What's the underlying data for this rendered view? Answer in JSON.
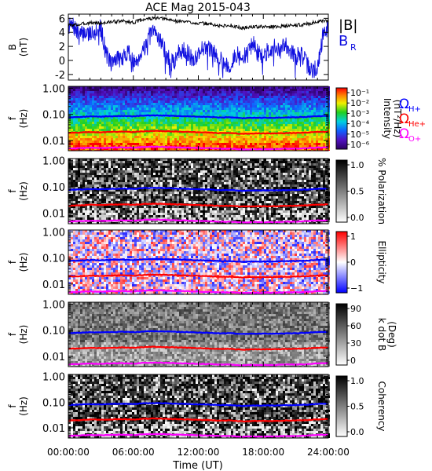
{
  "title": "ACE Mag 2015-043",
  "xlabel": "Time (UT)",
  "xticks": [
    "00:00:00",
    "06:00:00",
    "12:00:00",
    "18:00:00",
    "24:00:00"
  ],
  "colors": {
    "babs": "#000000",
    "br": "#1010e0",
    "h_plus": "#0000ff",
    "he_plus": "#ff0000",
    "o_plus": "#ff00ff"
  },
  "chart_data": [
    {
      "type": "line",
      "panel": "field",
      "xlabel": "",
      "ylabel": "B",
      "yunit": "(nT)",
      "xlim": [
        0,
        24
      ],
      "ylim": [
        -2.8,
        6.6
      ],
      "yticks": [
        "-2",
        "0",
        "2",
        "4",
        "6"
      ],
      "legend": [
        "|B|",
        "B",
        "R"
      ],
      "series": [
        {
          "name": "|B|",
          "x": [
            0,
            1,
            2,
            3,
            4,
            5,
            6,
            7,
            8,
            9,
            10,
            11,
            12,
            13,
            14,
            15,
            16,
            17,
            18,
            19,
            20,
            21,
            22,
            23,
            24
          ],
          "values": [
            5.0,
            5.1,
            5.4,
            5.3,
            5.5,
            5.6,
            5.4,
            5.9,
            6.0,
            5.9,
            5.6,
            5.5,
            5.3,
            5.2,
            4.9,
            5.0,
            4.6,
            4.8,
            4.8,
            4.8,
            4.9,
            5.0,
            5.2,
            5.5,
            5.6
          ]
        },
        {
          "name": "B_R",
          "x": [
            0,
            0.5,
            1,
            1.5,
            2,
            2.5,
            3,
            3.5,
            4,
            4.5,
            5,
            5.5,
            6,
            6.5,
            7,
            7.5,
            8,
            8.5,
            9,
            9.5,
            10,
            10.5,
            11,
            11.5,
            12,
            12.5,
            13,
            13.5,
            14,
            14.5,
            15,
            15.5,
            16,
            16.5,
            17,
            17.5,
            18,
            18.5,
            19,
            19.5,
            20,
            20.5,
            21,
            21.5,
            22,
            22.5,
            23,
            23.5,
            24
          ],
          "values": [
            5.0,
            4.8,
            3.5,
            4.0,
            3.8,
            4.5,
            4.7,
            1.0,
            -0.5,
            0.5,
            0.0,
            1.5,
            -0.5,
            0.5,
            2.0,
            3.5,
            4.0,
            3.0,
            1.0,
            -0.5,
            0.5,
            2.0,
            1.0,
            0.0,
            1.0,
            2.0,
            1.5,
            1.0,
            0.5,
            -0.5,
            -1.0,
            1.0,
            0.0,
            1.0,
            2.5,
            1.0,
            0.5,
            1.5,
            2.0,
            1.0,
            2.5,
            1.5,
            0.5,
            1.0,
            -0.5,
            -1.5,
            -1.0,
            3.5,
            5.0
          ]
        }
      ]
    },
    {
      "type": "heatmap",
      "panel": "intensity",
      "ylabel": "f",
      "yunit": "(Hz)",
      "yscale": "log",
      "ylim": [
        0.004,
        1.2
      ],
      "yticks": [
        "1.00",
        "0.10",
        "0.01"
      ],
      "colorbar": {
        "label": "Intensity",
        "unit": "(nT²/Hz)",
        "ticks": [
          "10⁻¹",
          "10⁻²",
          "10⁻³",
          "10⁻⁴",
          "10⁻⁵",
          "10⁻⁶"
        ],
        "colormap": "rainbow"
      },
      "legend": [
        {
          "symbol": "Ω",
          "sub": "H+",
          "color": "#0000ff"
        },
        {
          "symbol": "Ω",
          "sub": "He+",
          "color": "#ff0000"
        },
        {
          "symbol": "Ω",
          "sub": "O+",
          "color": "#ff00ff"
        }
      ]
    },
    {
      "type": "heatmap",
      "panel": "polarization",
      "ylabel": "f",
      "yunit": "(Hz)",
      "yscale": "log",
      "ylim": [
        0.004,
        1.2
      ],
      "yticks": [
        "1.00",
        "0.10",
        "0.01"
      ],
      "colorbar": {
        "label": "% Polarization",
        "unit": "",
        "ticks": [
          "1.0",
          "0.5",
          "0.0"
        ],
        "colormap": "gray"
      }
    },
    {
      "type": "heatmap",
      "panel": "ellipticity",
      "ylabel": "f",
      "yunit": "(Hz)",
      "yscale": "log",
      "ylim": [
        0.004,
        1.2
      ],
      "yticks": [
        "1.00",
        "0.10",
        "0.01"
      ],
      "colorbar": {
        "label": "Ellipticity",
        "unit": "",
        "ticks": [
          "1",
          "0",
          "−1"
        ],
        "colormap": "bwr"
      }
    },
    {
      "type": "heatmap",
      "panel": "kdotb",
      "ylabel": "f",
      "yunit": "(Hz)",
      "yscale": "log",
      "ylim": [
        0.004,
        1.2
      ],
      "yticks": [
        "1.00",
        "0.10",
        "0.01"
      ],
      "colorbar": {
        "label": "k dot B",
        "unit": "(Deg)",
        "ticks": [
          "90",
          "60",
          "30",
          "0"
        ],
        "colormap": "gray"
      }
    },
    {
      "type": "heatmap",
      "panel": "coherency",
      "ylabel": "f",
      "yunit": "(Hz)",
      "yscale": "log",
      "ylim": [
        0.004,
        1.2
      ],
      "yticks": [
        "1.00",
        "0.10",
        "0.01"
      ],
      "colorbar": {
        "label": "Coherency",
        "unit": "",
        "ticks": [
          "1.0",
          "0.5",
          "0.0"
        ],
        "colormap": "gray"
      }
    }
  ],
  "gyrofrequencies": {
    "x": [
      0,
      1,
      2,
      3,
      4,
      5,
      6,
      7,
      8,
      9,
      10,
      11,
      12,
      13,
      14,
      15,
      16,
      17,
      18,
      19,
      20,
      21,
      22,
      23,
      24
    ],
    "h_plus_hz": [
      0.078,
      0.08,
      0.084,
      0.082,
      0.085,
      0.087,
      0.084,
      0.09,
      0.092,
      0.09,
      0.087,
      0.085,
      0.082,
      0.08,
      0.076,
      0.077,
      0.071,
      0.074,
      0.074,
      0.074,
      0.076,
      0.077,
      0.08,
      0.085,
      0.086
    ],
    "he_plus_hz": [
      0.0195,
      0.02,
      0.021,
      0.0205,
      0.0213,
      0.0218,
      0.021,
      0.0225,
      0.023,
      0.0225,
      0.0218,
      0.0213,
      0.0205,
      0.02,
      0.019,
      0.0193,
      0.0178,
      0.0185,
      0.0185,
      0.0185,
      0.019,
      0.0193,
      0.02,
      0.0213,
      0.0215
    ],
    "o_plus_hz": [
      0.0049,
      0.005,
      0.0052,
      0.0051,
      0.0053,
      0.0054,
      0.0052,
      0.0056,
      0.0057,
      0.0056,
      0.0054,
      0.0053,
      0.0051,
      0.005,
      0.0048,
      0.0048,
      0.0045,
      0.0046,
      0.0046,
      0.0046,
      0.0048,
      0.0048,
      0.005,
      0.0053,
      0.0054
    ]
  }
}
